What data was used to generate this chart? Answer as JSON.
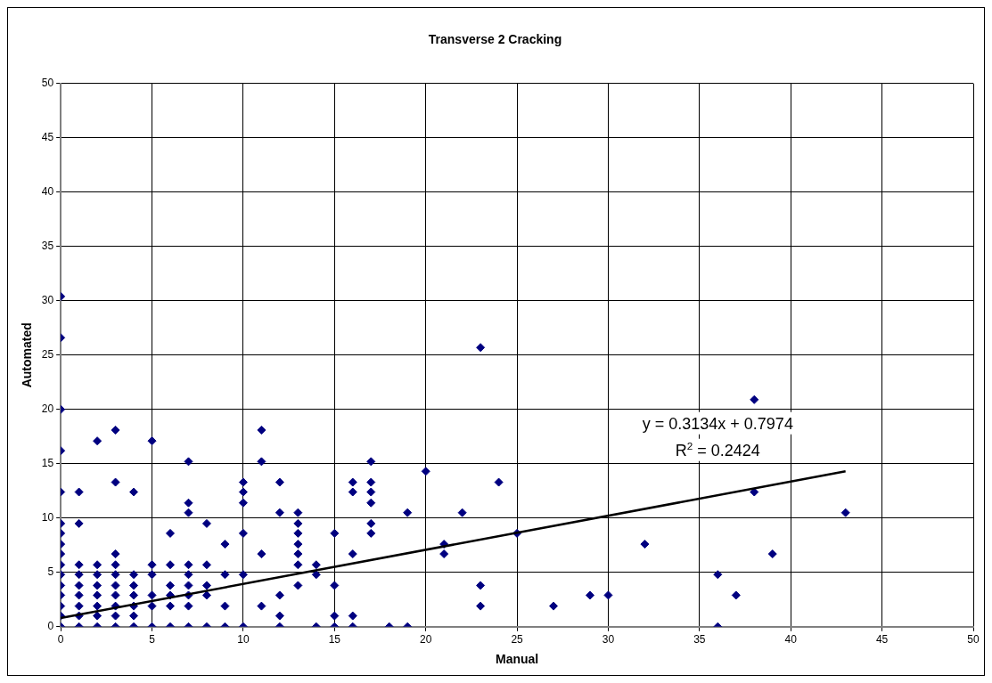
{
  "chart_data": {
    "type": "scatter",
    "title": "Transverse 2 Cracking",
    "xlabel": "Manual",
    "ylabel": "Automated",
    "xlim": [
      0,
      50
    ],
    "xticks": [
      0,
      5,
      10,
      15,
      20,
      25,
      30,
      35,
      40,
      45,
      50
    ],
    "ylim": [
      0,
      50
    ],
    "yticks": [
      0,
      5,
      10,
      15,
      20,
      25,
      30,
      35,
      40,
      45,
      50
    ],
    "grid": true,
    "legend": false,
    "annotations": [
      "y = 0.3134x + 0.7974",
      "R$^{2}$ = 0.2424"
    ],
    "series": [
      {
        "color": "#000080",
        "marker": "diamond",
        "x": [
          0,
          0,
          0,
          0,
          0,
          0,
          0,
          0,
          0,
          0,
          0,
          0,
          0,
          0,
          0,
          0,
          1,
          1,
          1,
          1,
          1,
          1,
          1,
          1,
          1,
          2,
          2,
          2,
          2,
          2,
          2,
          2,
          2,
          3,
          3,
          3,
          3,
          3,
          3,
          3,
          3,
          3,
          3,
          4,
          4,
          4,
          4,
          4,
          4,
          4,
          5,
          5,
          5,
          5,
          5,
          5,
          6,
          6,
          6,
          6,
          6,
          6,
          7,
          7,
          7,
          7,
          7,
          7,
          7,
          7,
          7,
          8,
          8,
          8,
          8,
          8,
          9,
          9,
          9,
          9,
          10,
          10,
          10,
          10,
          10,
          10,
          11,
          11,
          11,
          11,
          12,
          12,
          12,
          12,
          12,
          13,
          13,
          13,
          13,
          13,
          13,
          13,
          14,
          14,
          14,
          15,
          15,
          15,
          15,
          16,
          16,
          16,
          16,
          16,
          17,
          17,
          17,
          17,
          17,
          17,
          18,
          19,
          19,
          20,
          21,
          21,
          22,
          23,
          23,
          23,
          24,
          25,
          27,
          29,
          30,
          32,
          36,
          36,
          37,
          38,
          38,
          39,
          43
        ],
        "values": [
          0,
          1,
          1.9,
          2.9,
          3.8,
          4.8,
          5.7,
          6.7,
          7.6,
          8.6,
          9.5,
          12.4,
          16.2,
          20,
          26.6,
          30.4,
          0,
          1,
          1.9,
          2.9,
          3.8,
          4.8,
          5.7,
          9.5,
          12.4,
          0,
          1,
          1.9,
          2.9,
          3.8,
          4.8,
          5.7,
          17.1,
          0,
          1,
          1.9,
          2.9,
          3.8,
          4.8,
          5.7,
          6.7,
          13.3,
          18.1,
          0,
          1,
          1.9,
          2.9,
          3.8,
          4.8,
          12.4,
          0,
          1.9,
          2.9,
          4.8,
          5.7,
          17.1,
          0,
          1.9,
          2.9,
          3.8,
          5.7,
          8.6,
          0,
          1.9,
          2.9,
          3.8,
          4.8,
          5.7,
          10.5,
          11.4,
          15.2,
          0,
          2.9,
          3.8,
          5.7,
          9.5,
          0,
          1.9,
          4.8,
          7.6,
          0,
          4.8,
          8.6,
          11.4,
          12.4,
          13.3,
          1.9,
          6.7,
          15.2,
          18.1,
          0,
          1,
          2.9,
          10.5,
          13.3,
          3.8,
          5.7,
          6.7,
          7.6,
          8.6,
          9.5,
          10.5,
          0,
          4.8,
          5.7,
          0,
          1,
          3.8,
          8.6,
          0,
          1,
          6.7,
          12.4,
          13.3,
          8.6,
          9.5,
          11.4,
          12.4,
          13.3,
          15.2,
          0,
          0,
          10.5,
          14.3,
          6.7,
          7.6,
          10.5,
          1.9,
          3.8,
          25.7,
          13.3,
          8.6,
          1.9,
          2.9,
          2.9,
          7.6,
          0,
          4.8,
          2.9,
          12.4,
          20.9,
          6.7,
          10.5
        ]
      },
      {
        "type": "line",
        "color": "#000000",
        "marker": "none",
        "x": [
          0,
          43
        ],
        "values": [
          0.8,
          14.3
        ]
      }
    ]
  }
}
